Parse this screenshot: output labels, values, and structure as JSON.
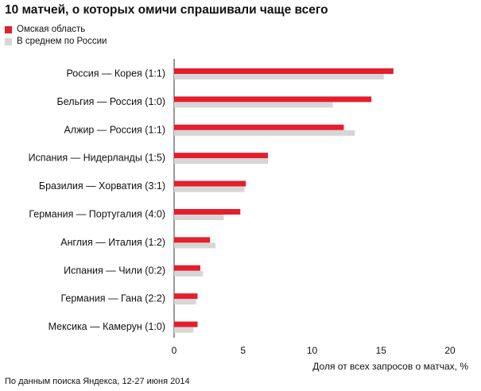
{
  "chart_data": {
    "type": "bar",
    "orientation": "horizontal",
    "title": "10 матчей, о которых омичи спрашивали чаще всего",
    "xlabel": "Доля от всех запросов о матчах, %",
    "ylabel": "",
    "xlim": [
      0,
      20
    ],
    "x_ticks": [
      "0",
      "5",
      "10",
      "15",
      "20"
    ],
    "grid": false,
    "legend_position": "top-left",
    "categories": [
      "Россия — Корея  (1:1)",
      "Бельгия — Россия  (1:0)",
      "Алжир — Россия  (1:1)",
      "Испания — Нидерланды  (1:5)",
      "Бразилия — Хорватия  (3:1)",
      "Германия — Португалия  (4:0)",
      "Англия — Италия  (1:2)",
      "Испания — Чили  (0:2)",
      "Германия — Гана  (2:2)",
      "Мексика — Камерун  (1:0)"
    ],
    "series": [
      {
        "name": "Омская область",
        "color": "#e31e2d",
        "values": [
          15.9,
          14.3,
          12.3,
          6.8,
          5.2,
          4.8,
          2.6,
          1.9,
          1.7,
          1.7
        ]
      },
      {
        "name": "В среднем по России",
        "color": "#d6d6d6",
        "values": [
          15.2,
          11.5,
          13.1,
          6.8,
          5.1,
          3.6,
          3.0,
          2.1,
          1.6,
          1.4
        ]
      }
    ],
    "source": "По данным поиска Яндекса, 12-27 июня 2014"
  }
}
